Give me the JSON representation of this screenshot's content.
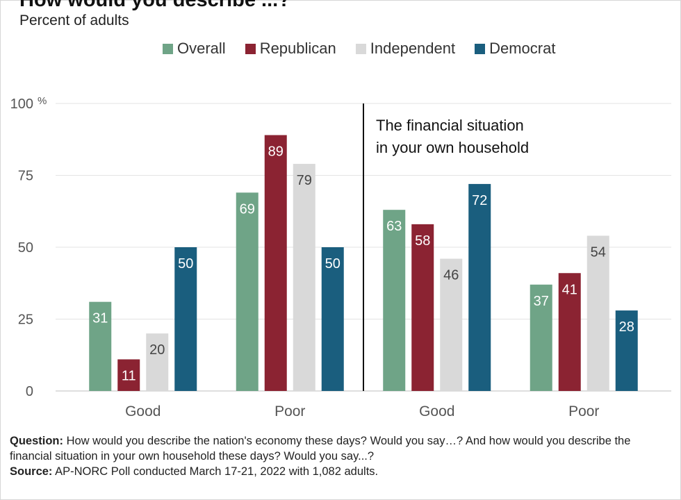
{
  "header": {
    "title": "How would you describe ...?",
    "subtitle": "Percent of adults"
  },
  "legend": [
    {
      "name": "Overall",
      "color": "#6fa487"
    },
    {
      "name": "Republican",
      "color": "#8b2332"
    },
    {
      "name": "Independent",
      "color": "#d9d9d9"
    },
    {
      "name": "Democrat",
      "color": "#1a5e7e"
    }
  ],
  "chart_data": {
    "type": "bar",
    "ylim": [
      0,
      100
    ],
    "yticks": [
      {
        "value": 0,
        "label": "0"
      },
      {
        "value": 25,
        "label": "25"
      },
      {
        "value": 50,
        "label": "50"
      },
      {
        "value": 75,
        "label": "75"
      },
      {
        "value": 100,
        "label": "100"
      }
    ],
    "y_unit": "%",
    "grid": true,
    "annotation": "The financial situation in your own household",
    "annotation_lines": [
      "The financial situation",
      "in your own household"
    ],
    "categories": [
      "Good",
      "Poor",
      "Good",
      "Poor"
    ],
    "series": [
      {
        "name": "Overall",
        "color": "#6fa487",
        "label_color": "#ffffff",
        "values": [
          31,
          69,
          63,
          37
        ]
      },
      {
        "name": "Republican",
        "color": "#8b2332",
        "label_color": "#ffffff",
        "values": [
          11,
          89,
          58,
          41
        ]
      },
      {
        "name": "Independent",
        "color": "#d9d9d9",
        "label_color": "#444444",
        "values": [
          20,
          79,
          46,
          54
        ]
      },
      {
        "name": "Democrat",
        "color": "#1a5e7e",
        "label_color": "#ffffff",
        "values": [
          50,
          50,
          72,
          28
        ]
      }
    ]
  },
  "notes": {
    "question_label": "Question:",
    "question_text": " How would you describe the nation's economy these days? Would you say…? And how would you describe the financial situation in your own household these days? Would you say...?",
    "source_label": "Source:",
    "source_text": " AP-NORC Poll conducted March 17-21, 2022 with 1,082 adults."
  }
}
